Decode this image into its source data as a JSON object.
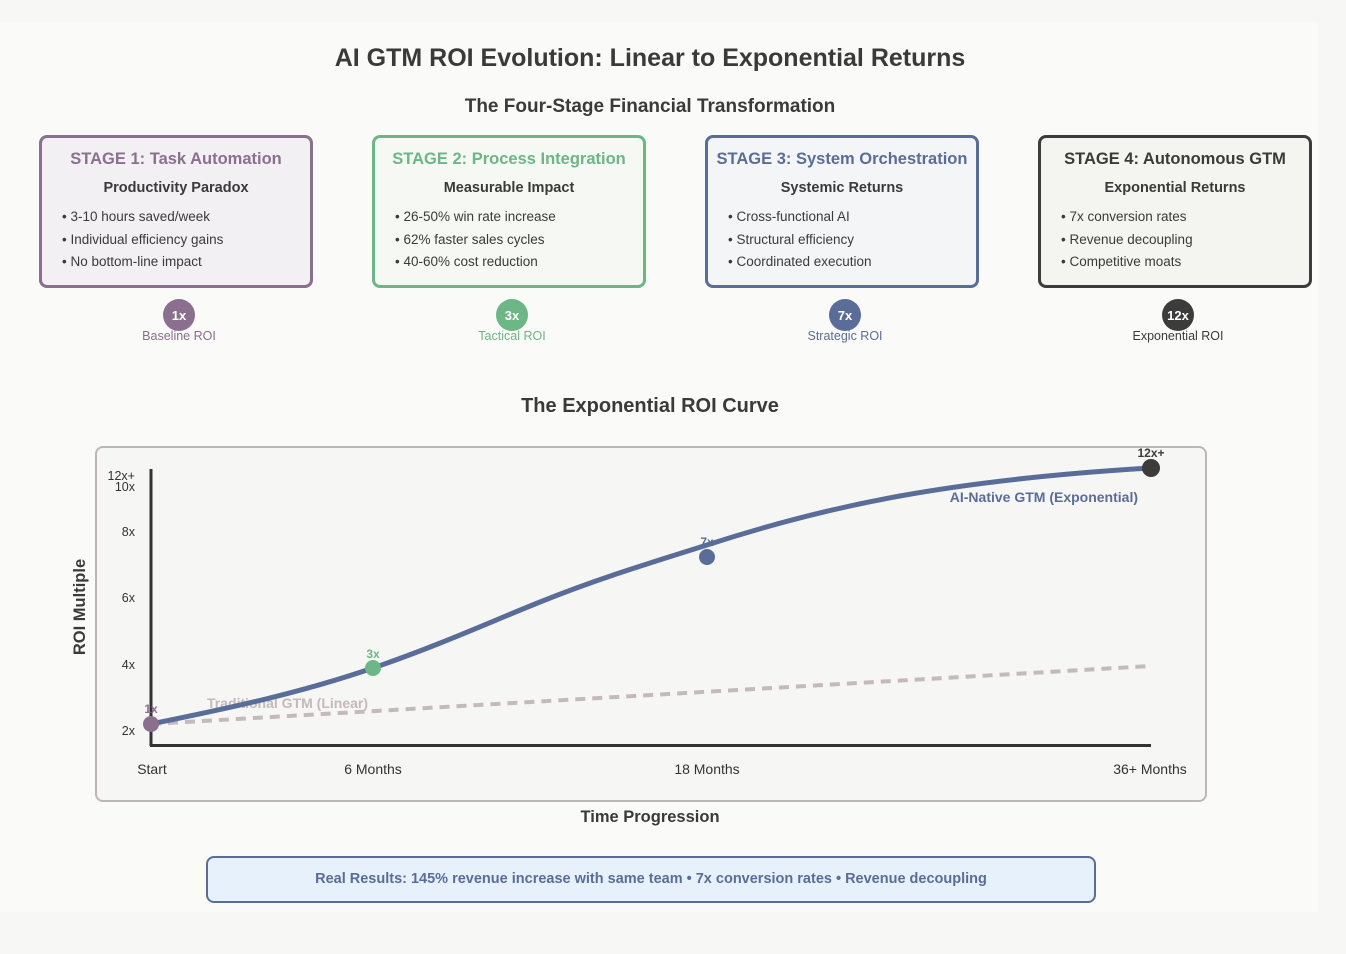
{
  "title": "AI GTM ROI Evolution: Linear to Exponential Returns",
  "subtitle": "The Four-Stage Financial Transformation",
  "stages": [
    {
      "title": "STAGE 1: Task Automation",
      "subtitle": "Productivity Paradox",
      "bullets": [
        "• 3-10 hours saved/week",
        "• Individual efficiency gains",
        "• No bottom-line impact"
      ],
      "badge": "1x",
      "roi_label": "Baseline ROI",
      "color": "#8a6f8e"
    },
    {
      "title": "STAGE 2: Process Integration",
      "subtitle": "Measurable Impact",
      "bullets": [
        "• 26-50% win rate increase",
        "• 62% faster sales cycles",
        "• 40-60% cost reduction"
      ],
      "badge": "3x",
      "roi_label": "Tactical ROI",
      "color": "#6db685"
    },
    {
      "title": "STAGE 3: System Orchestration",
      "subtitle": "Systemic Returns",
      "bullets": [
        "• Cross-functional AI",
        "• Structural efficiency",
        "• Coordinated execution"
      ],
      "badge": "7x",
      "roi_label": "Strategic ROI",
      "color": "#5a6d99"
    },
    {
      "title": "STAGE 4: Autonomous GTM",
      "subtitle": "Exponential Returns",
      "bullets": [
        "• 7x conversion rates",
        "• Revenue decoupling",
        "• Competitive moats"
      ],
      "badge": "12x",
      "roi_label": "Exponential ROI",
      "color": "#3c3c3c"
    }
  ],
  "curve_title": "The Exponential ROI Curve",
  "chart_data": {
    "type": "line",
    "xlabel": "Time Progression",
    "ylabel": "ROI Multiple",
    "x_categories": [
      "Start",
      "6 Months",
      "18 Months",
      "36+ Months"
    ],
    "y_ticks": [
      "2x",
      "4x",
      "6x",
      "8x",
      "10x",
      "12x+"
    ],
    "series": [
      {
        "name": "AI-Native GTM (Exponential)",
        "color": "#5a6d99",
        "points": [
          {
            "x": "Start",
            "y": 1,
            "label": "1x",
            "color": "#8a6f8e"
          },
          {
            "x": "6 Months",
            "y": 3,
            "label": "3x",
            "color": "#6db685"
          },
          {
            "x": "18 Months",
            "y": 7,
            "label": "7x",
            "color": "#5a6d99"
          },
          {
            "x": "36+ Months",
            "y": 12,
            "label": "12x+",
            "color": "#3c3c3c"
          }
        ]
      },
      {
        "name": "Traditional GTM (Linear)",
        "color": "#c4b9bd",
        "style": "dashed",
        "points": [
          {
            "x": "Start",
            "y": 1
          },
          {
            "x": "36+ Months",
            "y": 3
          }
        ]
      }
    ]
  },
  "results_text": "Real Results: 145% revenue increase with same team • 7x conversion rates • Revenue decoupling"
}
